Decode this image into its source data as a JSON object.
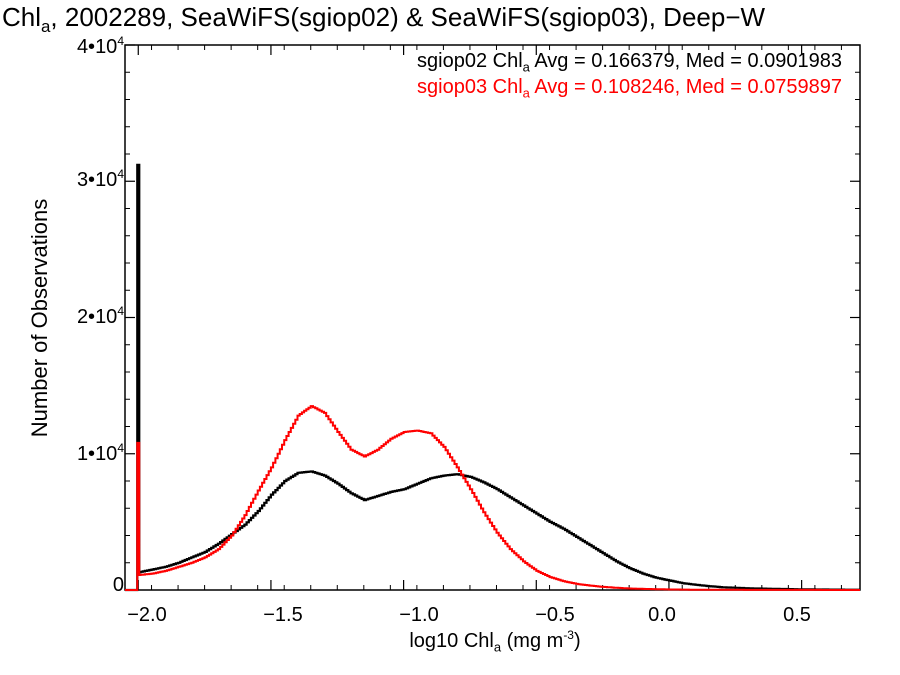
{
  "colors": {
    "series1": "#000000",
    "series2": "#ff0000",
    "axis": "#000000",
    "background": "#ffffff"
  },
  "title": {
    "prefix": "Chl",
    "sub": "a",
    "rest": ", 2002289, SeaWiFS(sgiop02) & SeaWiFS(sgiop03), Deep−W"
  },
  "legend": {
    "entries": [
      {
        "prefix": "sgiop02 Chl",
        "sub": "a",
        "rest": " Avg = 0.166379, Med = 0.0901983"
      },
      {
        "prefix": "sgiop03 Chl",
        "sub": "a",
        "rest": " Avg = 0.108246, Med = 0.0759897"
      }
    ]
  },
  "axes": {
    "xlabel": {
      "prefix": "log10 Chl",
      "sub": "a",
      "mid": " (mg m",
      "sup": "-3",
      "end": ")"
    },
    "ylabel": "Number of Observations",
    "yticks": [
      {
        "mant": "0",
        "exp": ""
      },
      {
        "mant": "1•10",
        "exp": "4"
      },
      {
        "mant": "2•10",
        "exp": "4"
      },
      {
        "mant": "3•10",
        "exp": "4"
      },
      {
        "mant": "4•10",
        "exp": "4"
      }
    ],
    "xticks": [
      "−2.0",
      "−1.5",
      "−1.0",
      "−0.5",
      "0.0",
      "0.5"
    ]
  },
  "chart_data": {
    "type": "line",
    "xlim": [
      -2.05,
      0.72
    ],
    "ylim": [
      0,
      40000
    ],
    "xtick_values": [
      -2.0,
      -1.5,
      -1.0,
      -0.5,
      0.0,
      0.5
    ],
    "ytick_values": [
      0,
      10000,
      20000,
      30000,
      40000
    ],
    "grid": false,
    "legend_position": "top-right",
    "series": [
      {
        "name": "sgiop02",
        "spike": {
          "x": -2.0,
          "y": 31200
        },
        "x": [
          -2.0,
          -1.95,
          -1.9,
          -1.85,
          -1.8,
          -1.75,
          -1.7,
          -1.65,
          -1.6,
          -1.55,
          -1.5,
          -1.45,
          -1.4,
          -1.35,
          -1.3,
          -1.25,
          -1.2,
          -1.15,
          -1.1,
          -1.05,
          -1.0,
          -0.95,
          -0.9,
          -0.85,
          -0.8,
          -0.75,
          -0.7,
          -0.65,
          -0.6,
          -0.55,
          -0.5,
          -0.45,
          -0.4,
          -0.35,
          -0.3,
          -0.25,
          -0.2,
          -0.15,
          -0.1,
          -0.05,
          0.0,
          0.05,
          0.1,
          0.15,
          0.2,
          0.3,
          0.4,
          0.5,
          0.6,
          0.72
        ],
        "y": [
          1300,
          1500,
          1700,
          2000,
          2400,
          2800,
          3400,
          4100,
          4800,
          5800,
          7000,
          8000,
          8600,
          8700,
          8400,
          7800,
          7100,
          6600,
          6900,
          7200,
          7400,
          7800,
          8200,
          8400,
          8500,
          8300,
          7900,
          7400,
          6800,
          6200,
          5600,
          5000,
          4500,
          3900,
          3300,
          2700,
          2100,
          1600,
          1200,
          900,
          700,
          500,
          380,
          280,
          200,
          120,
          80,
          50,
          30,
          20
        ]
      },
      {
        "name": "sgiop03",
        "spike": {
          "x": -2.0,
          "y": 10800
        },
        "x": [
          -2.0,
          -1.95,
          -1.9,
          -1.85,
          -1.8,
          -1.75,
          -1.7,
          -1.65,
          -1.6,
          -1.55,
          -1.5,
          -1.45,
          -1.4,
          -1.35,
          -1.3,
          -1.25,
          -1.2,
          -1.15,
          -1.1,
          -1.05,
          -1.0,
          -0.95,
          -0.9,
          -0.85,
          -0.8,
          -0.75,
          -0.7,
          -0.65,
          -0.6,
          -0.55,
          -0.5,
          -0.45,
          -0.4,
          -0.35,
          -0.3,
          -0.25,
          -0.2,
          -0.15,
          -0.1,
          -0.05,
          0.0,
          0.05,
          0.1,
          0.2,
          0.3,
          0.5,
          0.72
        ],
        "y": [
          1100,
          1200,
          1400,
          1700,
          2000,
          2400,
          3000,
          4000,
          5500,
          7300,
          9000,
          11000,
          12800,
          13500,
          13000,
          11600,
          10300,
          9800,
          10300,
          11100,
          11600,
          11700,
          11500,
          10500,
          9000,
          7400,
          5700,
          4200,
          3000,
          2100,
          1400,
          950,
          650,
          450,
          320,
          230,
          160,
          110,
          80,
          60,
          40,
          30,
          20,
          15,
          10,
          5,
          0
        ]
      }
    ]
  }
}
